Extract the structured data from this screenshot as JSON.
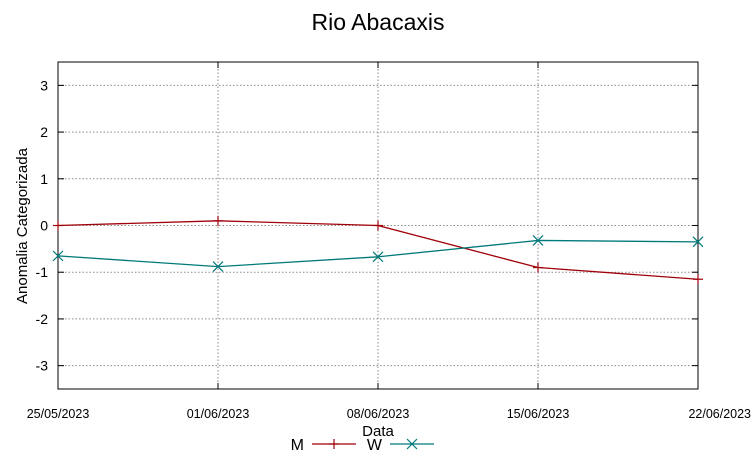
{
  "chart_data": {
    "type": "line",
    "title": "Rio Abacaxis",
    "xlabel": "Data",
    "ylabel": "Anomalia Categorizada",
    "x": [
      "25/05/2023",
      "01/06/2023",
      "08/06/2023",
      "15/06/2023",
      "22/06/2023"
    ],
    "ylim": [
      -3.5,
      3.5
    ],
    "yticks": [
      -3,
      -2,
      -1,
      0,
      1,
      2,
      3
    ],
    "grid": true,
    "legend_position": "bottom",
    "series": [
      {
        "name": "M",
        "color": "#a0000a",
        "marker": "plus",
        "values": [
          0.0,
          0.1,
          0.0,
          -0.9,
          -1.15
        ]
      },
      {
        "name": "W",
        "color": "#00797a",
        "marker": "cross",
        "values": [
          -0.65,
          -0.88,
          -0.67,
          -0.32,
          -0.35
        ]
      }
    ]
  }
}
